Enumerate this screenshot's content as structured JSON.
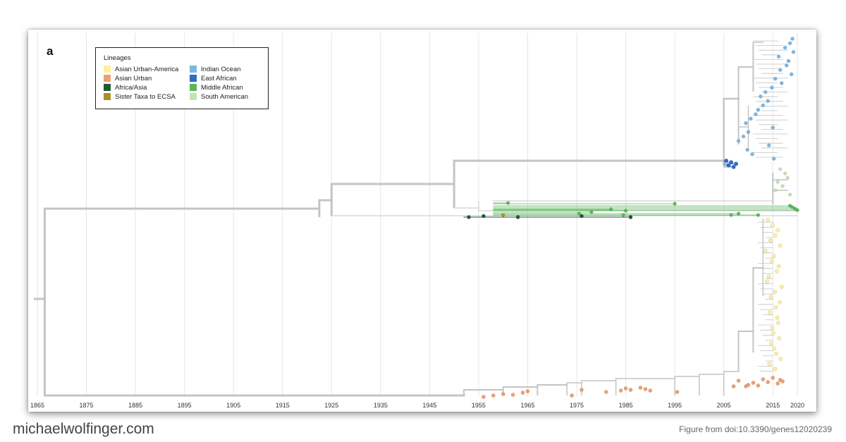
{
  "panel_label": "a",
  "footer": {
    "site": "michaelwolfinger.com",
    "credit": "Figure from doi:10.3390/genes12020239"
  },
  "legend": {
    "title": "Lineages",
    "items": [
      {
        "label": "Asian Urban-America",
        "color": "#fdf0a0"
      },
      {
        "label": "Asian Urban",
        "color": "#f0a070"
      },
      {
        "label": "Africa/Asia",
        "color": "#1f5a30"
      },
      {
        "label": "Sister Taxa to ECSA",
        "color": "#a8902c"
      },
      {
        "label": "Indian Ocean",
        "color": "#7ab8e6"
      },
      {
        "label": "East African",
        "color": "#2f6cc4"
      },
      {
        "label": "Middle African",
        "color": "#5ab85a"
      },
      {
        "label": "South American",
        "color": "#bfe6b0"
      }
    ]
  },
  "chart_data": {
    "type": "phylogenetic-tree",
    "title": "",
    "xlabel": "",
    "ylabel": "",
    "x_axis": {
      "ticks": [
        1865,
        1875,
        1885,
        1895,
        1905,
        1915,
        1925,
        1935,
        1945,
        1955,
        1965,
        1975,
        1985,
        1995,
        2005,
        2015,
        2020
      ],
      "range": [
        1865,
        2020
      ],
      "grid": true
    },
    "branch_color": "#c4c4c4",
    "nodes": [
      {
        "name": "root",
        "year": 1866.5
      },
      {
        "name": "split-asian-vs-ecsa",
        "year": 1867.5
      },
      {
        "name": "ecsa-base",
        "year": 1922.5
      },
      {
        "name": "ecsa-core",
        "year": 1925.0
      },
      {
        "name": "io-ea-ancestor",
        "year": 1950.0
      },
      {
        "name": "io-tmrca",
        "year": 2005.0
      },
      {
        "name": "asian-urban-base",
        "year": 1952.0
      }
    ],
    "tips": {
      "Indian Ocean": [
        {
          "year": 2019.0
        },
        {
          "year": 2018.5
        },
        {
          "year": 2017.5
        },
        {
          "year": 2019.2
        },
        {
          "year": 2016.2
        },
        {
          "year": 2018.2
        },
        {
          "year": 2017.8
        },
        {
          "year": 2016.5
        },
        {
          "year": 2018.8
        },
        {
          "year": 2015.5
        },
        {
          "year": 2016.8
        },
        {
          "year": 2014.8
        },
        {
          "year": 2013.5
        },
        {
          "year": 2012.5
        },
        {
          "year": 2014.0
        },
        {
          "year": 2013.0
        },
        {
          "year": 2012.0
        },
        {
          "year": 2011.5
        },
        {
          "year": 2010.5
        },
        {
          "year": 2009.5
        },
        {
          "year": 2015.0
        },
        {
          "year": 2010.0
        },
        {
          "year": 2009.0
        },
        {
          "year": 2008.0
        },
        {
          "year": 2014.2
        },
        {
          "year": 2009.8
        },
        {
          "year": 2010.8
        },
        {
          "year": 2015.2
        }
      ],
      "East African": [
        {
          "year": 2005.5
        },
        {
          "year": 2006.5
        },
        {
          "year": 2007.5
        },
        {
          "year": 2006.0
        },
        {
          "year": 2007.0
        }
      ],
      "South American": [
        {
          "year": 2016.5
        },
        {
          "year": 2017.5
        },
        {
          "year": 2018.0
        },
        {
          "year": 2016.0
        },
        {
          "year": 2017.0
        },
        {
          "year": 2015.5
        },
        {
          "year": 2018.5
        }
      ],
      "Middle African": [
        {
          "year": 1961.0
        },
        {
          "year": 1995.0
        },
        {
          "year": 1982.0
        },
        {
          "year": 1985.0
        },
        {
          "year": 1978.0
        },
        {
          "year": 1975.5
        },
        {
          "year": 1984.5
        },
        {
          "year": 2006.5
        },
        {
          "year": 2008.0
        },
        {
          "year": 2012.0
        },
        {
          "year": 2019.0
        },
        {
          "year": 2019.5
        },
        {
          "year": 2020.0
        },
        {
          "year": 2018.5
        }
      ],
      "Sister Taxa to ECSA": [
        {
          "year": 1960.0
        }
      ],
      "Africa/Asia": [
        {
          "year": 1953.0
        },
        {
          "year": 1956.0
        },
        {
          "year": 1963.0
        },
        {
          "year": 1976.0
        },
        {
          "year": 1986.0
        }
      ],
      "Asian Urban": [
        {
          "year": 1956.0
        },
        {
          "year": 1958.0
        },
        {
          "year": 1960.0
        },
        {
          "year": 1962.0
        },
        {
          "year": 1964.0
        },
        {
          "year": 1965.0
        },
        {
          "year": 1974.0
        },
        {
          "year": 1976.0
        },
        {
          "year": 1981.0
        },
        {
          "year": 1984.0
        },
        {
          "year": 1985.0
        },
        {
          "year": 1986.0
        },
        {
          "year": 1988.0
        },
        {
          "year": 1989.0
        },
        {
          "year": 1990.0
        },
        {
          "year": 1995.5
        },
        {
          "year": 2008.0
        },
        {
          "year": 2009.5
        },
        {
          "year": 2010.0
        },
        {
          "year": 2011.0
        },
        {
          "year": 2012.0
        },
        {
          "year": 2013.0
        },
        {
          "year": 2014.0
        },
        {
          "year": 2015.0
        },
        {
          "year": 2016.0
        },
        {
          "year": 2016.5
        },
        {
          "year": 2017.0
        },
        {
          "year": 2007.0
        }
      ],
      "Asian Urban-America": [
        {
          "year": 2014.0
        },
        {
          "year": 2015.0
        },
        {
          "year": 2016.0
        },
        {
          "year": 2015.5
        },
        {
          "year": 2014.5
        },
        {
          "year": 2016.5
        },
        {
          "year": 2013.5
        },
        {
          "year": 2015.2
        },
        {
          "year": 2014.8
        },
        {
          "year": 2016.2
        },
        {
          "year": 2015.8
        },
        {
          "year": 2014.2
        },
        {
          "year": 2013.8
        },
        {
          "year": 2016.8
        },
        {
          "year": 2015.4
        },
        {
          "year": 2014.6
        },
        {
          "year": 2016.4
        },
        {
          "year": 2015.6
        },
        {
          "year": 2014.4
        },
        {
          "year": 2015.9
        },
        {
          "year": 2016.1
        },
        {
          "year": 2014.9
        },
        {
          "year": 2015.1
        },
        {
          "year": 2016.3
        },
        {
          "year": 2014.7
        },
        {
          "year": 2015.3
        },
        {
          "year": 2015.7
        },
        {
          "year": 2016.6
        },
        {
          "year": 2014.3
        },
        {
          "year": 2015.45
        }
      ]
    }
  }
}
